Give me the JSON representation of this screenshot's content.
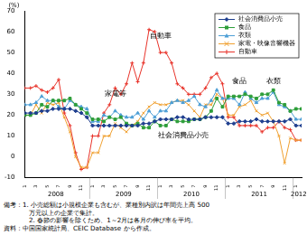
{
  "chart_data": {
    "type": "line",
    "y_label": "(%)",
    "categories": [
      "1",
      null,
      "3",
      null,
      "5",
      null,
      "7",
      null,
      "9",
      null,
      "11",
      null,
      "1",
      null,
      "3",
      null,
      "5",
      null,
      "7",
      null,
      "9",
      null,
      "11",
      null,
      "1",
      null,
      "3",
      null,
      "5",
      null,
      "7",
      null,
      "9",
      null,
      "11",
      null,
      "1",
      null,
      "3",
      null,
      "5",
      null,
      "7",
      null,
      "9",
      null,
      "11",
      null,
      "1",
      null
    ],
    "year_labels": [
      "2008",
      "2009",
      "2010",
      "2011",
      "2012"
    ],
    "series": [
      {
        "name": "社会消費品小売",
        "color": "#1f3f8f",
        "marker": "diamond",
        "values": [
          21,
          21,
          21,
          22,
          22,
          23,
          23,
          23,
          23,
          22,
          21,
          19,
          15,
          15,
          15,
          15,
          15,
          15,
          15,
          15,
          15,
          16,
          16,
          17,
          18,
          18,
          18,
          19,
          19,
          18,
          18,
          18,
          19,
          19,
          19,
          19,
          16,
          16,
          17,
          17,
          17,
          18,
          17,
          17,
          17,
          17,
          17,
          18,
          15,
          15
        ]
      },
      {
        "name": "食品",
        "color": "#2e9e3a",
        "marker": "square",
        "values": [
          20,
          20,
          21,
          25,
          24,
          27,
          27,
          27,
          28,
          25,
          23,
          21,
          18,
          18,
          17,
          19,
          18,
          19,
          16,
          15,
          16,
          14,
          14,
          17,
          15,
          15,
          18,
          17,
          17,
          17,
          18,
          18,
          19,
          22,
          28,
          24,
          29,
          29,
          29,
          30,
          29,
          28,
          30,
          30,
          32,
          26,
          25,
          22,
          23,
          23
        ]
      },
      {
        "name": "衣類",
        "color": "#4d9fd6",
        "marker": "triangle",
        "values": [
          25,
          25,
          26,
          29,
          27,
          27,
          24,
          23,
          27,
          25,
          24,
          23,
          17,
          17,
          20,
          19,
          22,
          20,
          19,
          19,
          21,
          18,
          22,
          19,
          22,
          22,
          26,
          27,
          26,
          27,
          29,
          25,
          24,
          27,
          32,
          28,
          28,
          28,
          25,
          31,
          28,
          26,
          28,
          28,
          31,
          25,
          24,
          22,
          18,
          18
        ]
      },
      {
        "name": "家電・映像音響機器",
        "color": "#f0a030",
        "marker": "x",
        "values": [
          20,
          20,
          25,
          21,
          26,
          25,
          26,
          19,
          12,
          0,
          -5,
          -5,
          2,
          2,
          10,
          10,
          16,
          14,
          12,
          15,
          17,
          21,
          24,
          26,
          25,
          25,
          26,
          27,
          27,
          25,
          22,
          19,
          25,
          25,
          30,
          28,
          20,
          20,
          24,
          25,
          27,
          22,
          20,
          21,
          17,
          10,
          -3,
          9,
          8,
          8
        ]
      },
      {
        "name": "自動車",
        "color": "#e8332a",
        "marker": "plus",
        "values": [
          33,
          33,
          34,
          32,
          31,
          33,
          37,
          21,
          15,
          2,
          -6,
          -5,
          10,
          10,
          21,
          25,
          33,
          30,
          35,
          45,
          36,
          45,
          61,
          60,
          50,
          50,
          45,
          35,
          33,
          30,
          30,
          30,
          33,
          38,
          40,
          35,
          19,
          19,
          15,
          15,
          15,
          15,
          12,
          14,
          14,
          17,
          14,
          13,
          8,
          8
        ]
      }
    ],
    "annotations": [
      {
        "text": "自動車",
        "x": 24,
        "y": 58
      },
      {
        "text": "家電等",
        "x": 16,
        "y": 30
      },
      {
        "text": "食品",
        "x": 38,
        "y": 36
      },
      {
        "text": "衣類",
        "x": 44,
        "y": 36
      },
      {
        "text": "社会消費品小売",
        "x": 28,
        "y": 10
      }
    ],
    "ylim": [
      -10,
      70
    ],
    "yticks": [
      -10,
      0,
      10,
      20,
      30,
      40,
      50,
      60,
      70
    ],
    "grid": false,
    "legend": "top-right",
    "notes": [
      "備考：1. 小売総額は小規模企業も含むが、業種別内訳は年間売上高 500",
      "万元以上の企業で集計。",
      "2. 春節の影響を除くため、1～2月は各月の伸び率を平均。",
      "資料：中国国家統計局、CEIC Database から作成。"
    ]
  }
}
